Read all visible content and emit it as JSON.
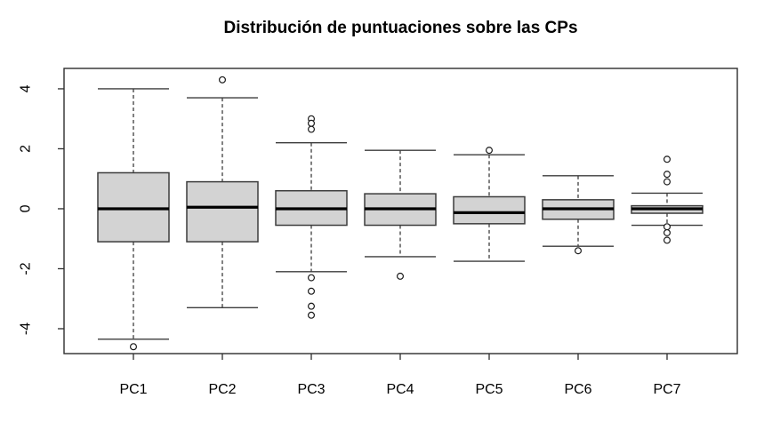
{
  "chart_data": {
    "type": "boxplot",
    "title": "Distribución de puntuaciones sobre las CPs",
    "xlabel": "",
    "ylabel": "",
    "grid": false,
    "legend": null,
    "categories": [
      "PC1",
      "PC2",
      "PC3",
      "PC4",
      "PC5",
      "PC6",
      "PC7"
    ],
    "series": [
      {
        "name": "PC1",
        "whisker_low": -4.35,
        "q1": -1.1,
        "median": 0.0,
        "q3": 1.2,
        "whisker_high": 4.0,
        "outliers": [
          -4.6
        ]
      },
      {
        "name": "PC2",
        "whisker_low": -3.3,
        "q1": -1.1,
        "median": 0.05,
        "q3": 0.9,
        "whisker_high": 3.7,
        "outliers": [
          4.3
        ]
      },
      {
        "name": "PC3",
        "whisker_low": -2.1,
        "q1": -0.55,
        "median": 0.0,
        "q3": 0.6,
        "whisker_high": 2.2,
        "outliers": [
          3.0,
          2.85,
          2.65,
          -2.3,
          -2.75,
          -3.25,
          -3.55
        ]
      },
      {
        "name": "PC4",
        "whisker_low": -1.6,
        "q1": -0.55,
        "median": 0.0,
        "q3": 0.5,
        "whisker_high": 1.95,
        "outliers": [
          -2.25
        ]
      },
      {
        "name": "PC5",
        "whisker_low": -1.75,
        "q1": -0.5,
        "median": -0.13,
        "q3": 0.4,
        "whisker_high": 1.8,
        "outliers": [
          1.95
        ]
      },
      {
        "name": "PC6",
        "whisker_low": -1.25,
        "q1": -0.35,
        "median": 0.0,
        "q3": 0.3,
        "whisker_high": 1.1,
        "outliers": [
          -1.4
        ]
      },
      {
        "name": "PC7",
        "whisker_low": -0.55,
        "q1": -0.15,
        "median": 0.0,
        "q3": 0.1,
        "whisker_high": 0.52,
        "outliers": [
          1.65,
          1.15,
          0.9,
          -0.6,
          -0.8,
          -1.05
        ]
      }
    ],
    "yticks": [
      -4,
      -2,
      0,
      2,
      4
    ],
    "ylim": [
      -4.83,
      4.68
    ],
    "colors": {
      "box_fill": "#d3d3d3",
      "box_border": "#3c3c3c",
      "median": "#000000",
      "whisker": "#1a1a1a",
      "axis": "#2e2e2e",
      "text": "#000000",
      "background": "#ffffff"
    }
  }
}
